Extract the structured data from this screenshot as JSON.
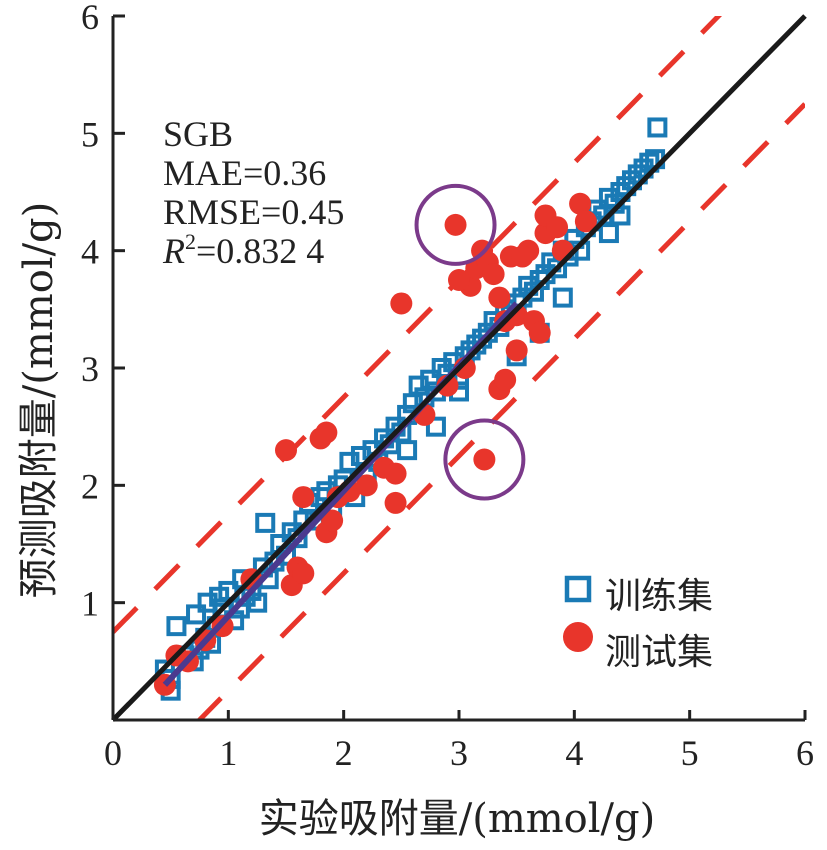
{
  "chart_data": {
    "type": "scatter",
    "title": "",
    "xlabel": "实验吸附量/(mmol/g)",
    "ylabel": "预测吸附量/(mmol/g)",
    "xlim": [
      0,
      6
    ],
    "ylim": [
      0,
      6
    ],
    "x_ticks": [
      "0",
      "1",
      "2",
      "3",
      "4",
      "5",
      "6"
    ],
    "y_ticks": [
      "1",
      "2",
      "3",
      "4",
      "5",
      "6"
    ],
    "grid": false,
    "legend_position": "bottom-right",
    "annotation": {
      "model": "SGB",
      "mae": "MAE=0.36",
      "rmse": "RMSE=0.45",
      "r2_prefix": "R",
      "r2_sup": "2",
      "r2_value": "=0.832 4"
    },
    "colors": {
      "train": "#1a7ab5",
      "test": "#e8352b",
      "ideal_line": "#1a1a1a",
      "bound_lines": "#e8352b",
      "fit_line": "#4b3a8f",
      "outlier_circles": "#7b3a8a"
    },
    "reference_lines": {
      "ideal": {
        "slope": 1,
        "intercept": 0
      },
      "upper_bound": {
        "slope": 1,
        "intercept": 0.75
      },
      "lower_bound": {
        "slope": 1,
        "intercept": -0.75
      },
      "fit": {
        "from": [
          0.45,
          0.3
        ],
        "to": [
          3.5,
          3.55
        ]
      }
    },
    "outliers": [
      {
        "x": 2.97,
        "y": 4.22
      },
      {
        "x": 3.22,
        "y": 2.22
      }
    ],
    "series": [
      {
        "name": "训练集",
        "marker": "square-open",
        "points": [
          [
            0.45,
            0.43
          ],
          [
            0.5,
            0.35
          ],
          [
            0.5,
            0.25
          ],
          [
            0.55,
            0.8
          ],
          [
            0.62,
            0.55
          ],
          [
            0.7,
            0.5
          ],
          [
            0.72,
            0.9
          ],
          [
            0.75,
            0.6
          ],
          [
            0.8,
            0.7
          ],
          [
            0.82,
            1.0
          ],
          [
            0.85,
            0.65
          ],
          [
            0.9,
            0.8
          ],
          [
            0.92,
            1.05
          ],
          [
            0.95,
            0.95
          ],
          [
            1.0,
            1.1
          ],
          [
            1.05,
            0.85
          ],
          [
            1.1,
            0.95
          ],
          [
            1.12,
            1.2
          ],
          [
            1.15,
            1.05
          ],
          [
            1.2,
            1.1
          ],
          [
            1.25,
            1.0
          ],
          [
            1.3,
            1.3
          ],
          [
            1.32,
            1.68
          ],
          [
            1.35,
            1.2
          ],
          [
            1.4,
            1.35
          ],
          [
            1.45,
            1.5
          ],
          [
            1.5,
            1.4
          ],
          [
            1.55,
            1.6
          ],
          [
            1.6,
            1.55
          ],
          [
            1.65,
            1.7
          ],
          [
            1.7,
            1.85
          ],
          [
            1.75,
            1.7
          ],
          [
            1.8,
            1.9
          ],
          [
            1.85,
            1.95
          ],
          [
            1.9,
            1.8
          ],
          [
            1.95,
            2.0
          ],
          [
            2.0,
            2.05
          ],
          [
            2.05,
            2.2
          ],
          [
            2.1,
            1.9
          ],
          [
            2.15,
            2.25
          ],
          [
            2.2,
            2.1
          ],
          [
            2.25,
            2.3
          ],
          [
            2.3,
            2.2
          ],
          [
            2.35,
            2.4
          ],
          [
            2.4,
            2.35
          ],
          [
            2.45,
            2.5
          ],
          [
            2.5,
            2.45
          ],
          [
            2.55,
            2.6
          ],
          [
            2.6,
            2.7
          ],
          [
            2.65,
            2.85
          ],
          [
            2.7,
            2.75
          ],
          [
            2.75,
            2.9
          ],
          [
            2.8,
            2.8
          ],
          [
            2.85,
            3.0
          ],
          [
            2.9,
            2.95
          ],
          [
            2.95,
            3.05
          ],
          [
            3.0,
            2.9
          ],
          [
            3.05,
            3.1
          ],
          [
            3.1,
            3.15
          ],
          [
            3.15,
            3.2
          ],
          [
            3.2,
            3.25
          ],
          [
            3.25,
            3.3
          ],
          [
            3.3,
            3.4
          ],
          [
            3.35,
            3.35
          ],
          [
            3.4,
            3.5
          ],
          [
            3.45,
            3.45
          ],
          [
            3.5,
            3.55
          ],
          [
            3.55,
            3.6
          ],
          [
            3.6,
            3.7
          ],
          [
            3.65,
            3.65
          ],
          [
            3.7,
            3.75
          ],
          [
            3.75,
            3.8
          ],
          [
            3.8,
            3.9
          ],
          [
            3.85,
            3.85
          ],
          [
            3.9,
            4.0
          ],
          [
            3.95,
            3.95
          ],
          [
            4.0,
            4.1
          ],
          [
            4.05,
            4.0
          ],
          [
            4.1,
            4.2
          ],
          [
            4.15,
            4.25
          ],
          [
            4.2,
            4.35
          ],
          [
            4.25,
            4.3
          ],
          [
            4.3,
            4.45
          ],
          [
            4.35,
            4.4
          ],
          [
            4.4,
            4.5
          ],
          [
            4.45,
            4.55
          ],
          [
            4.5,
            4.6
          ],
          [
            4.55,
            4.65
          ],
          [
            4.6,
            4.7
          ],
          [
            4.65,
            4.75
          ],
          [
            4.7,
            4.78
          ],
          [
            4.72,
            5.05
          ],
          [
            3.5,
            3.1
          ],
          [
            3.7,
            3.3
          ],
          [
            3.9,
            3.6
          ],
          [
            4.3,
            4.15
          ],
          [
            4.4,
            4.3
          ],
          [
            2.55,
            2.3
          ],
          [
            2.8,
            2.5
          ],
          [
            3.0,
            2.8
          ]
        ]
      },
      {
        "name": "测试集",
        "marker": "circle-filled",
        "points": [
          [
            0.45,
            0.3
          ],
          [
            0.55,
            0.55
          ],
          [
            0.65,
            0.5
          ],
          [
            0.8,
            0.68
          ],
          [
            0.95,
            0.8
          ],
          [
            1.2,
            1.2
          ],
          [
            1.5,
            2.3
          ],
          [
            1.55,
            1.15
          ],
          [
            1.6,
            1.3
          ],
          [
            1.65,
            1.25
          ],
          [
            1.65,
            1.9
          ],
          [
            1.8,
            2.4
          ],
          [
            1.85,
            2.45
          ],
          [
            1.85,
            1.6
          ],
          [
            1.9,
            1.7
          ],
          [
            1.95,
            1.9
          ],
          [
            2.05,
            1.95
          ],
          [
            2.2,
            2.0
          ],
          [
            2.35,
            2.15
          ],
          [
            2.45,
            2.1
          ],
          [
            2.45,
            1.85
          ],
          [
            2.5,
            3.55
          ],
          [
            2.7,
            2.6
          ],
          [
            2.9,
            2.85
          ],
          [
            2.97,
            4.22
          ],
          [
            3.05,
            3.0
          ],
          [
            3.1,
            3.7
          ],
          [
            3.15,
            3.85
          ],
          [
            3.2,
            4.0
          ],
          [
            3.25,
            3.9
          ],
          [
            3.3,
            3.8
          ],
          [
            3.35,
            3.6
          ],
          [
            3.35,
            2.82
          ],
          [
            3.4,
            2.9
          ],
          [
            3.4,
            3.4
          ],
          [
            3.45,
            3.95
          ],
          [
            3.5,
            3.15
          ],
          [
            3.5,
            3.45
          ],
          [
            3.6,
            4.0
          ],
          [
            3.65,
            3.4
          ],
          [
            3.7,
            3.3
          ],
          [
            3.75,
            4.15
          ],
          [
            3.75,
            4.3
          ],
          [
            3.85,
            4.2
          ],
          [
            3.9,
            4.0
          ],
          [
            4.05,
            4.4
          ],
          [
            4.1,
            4.25
          ],
          [
            3.22,
            2.22
          ],
          [
            3.55,
            3.95
          ],
          [
            3.0,
            3.75
          ]
        ]
      }
    ]
  }
}
